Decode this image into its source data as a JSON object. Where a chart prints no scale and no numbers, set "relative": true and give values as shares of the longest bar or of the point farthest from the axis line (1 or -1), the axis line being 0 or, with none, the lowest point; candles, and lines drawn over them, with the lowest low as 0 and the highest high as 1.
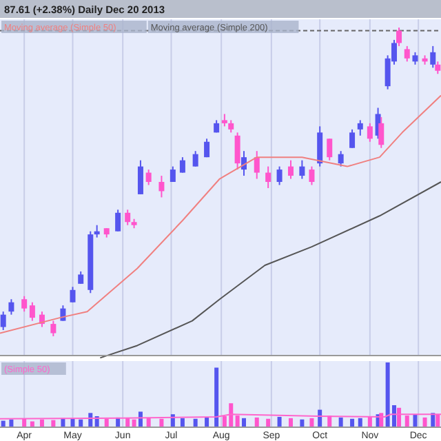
{
  "chart_data": [
    {
      "type": "candlestick",
      "title": "87.61 (+2.38%)   Daily  Dec 20 2013",
      "relative": true,
      "legend": "top left",
      "grid": "x",
      "tick_labels": false,
      "xlim": [
        "2013-03-17",
        "2013-12-15"
      ],
      "xticks": [
        {
          "value": "2013-04-01",
          "label": null
        },
        {
          "value": "2013-05-01",
          "label": null
        },
        {
          "value": "2013-06-01",
          "label": null
        },
        {
          "value": "2013-07-01",
          "label": null
        },
        {
          "value": "2013-08-01",
          "label": null
        },
        {
          "value": "2013-09-01",
          "label": null
        },
        {
          "value": "2013-10-01",
          "label": null
        },
        {
          "value": "2013-11-01",
          "label": null
        },
        {
          "value": "2013-12-01",
          "label": null
        }
      ],
      "x": [
        "2013-03-19",
        "2013-03-24",
        "2013-04-01",
        "2013-04-06",
        "2013-04-12",
        "2013-04-19",
        "2013-04-25",
        "2013-05-01",
        "2013-05-06",
        "2013-05-12",
        "2013-05-16",
        "2013-05-22",
        "2013-05-29",
        "2013-06-04",
        "2013-06-08",
        "2013-06-12",
        "2013-06-17",
        "2013-06-25",
        "2013-07-02",
        "2013-07-08",
        "2013-07-16",
        "2013-07-23",
        "2013-07-29",
        "2013-08-03",
        "2013-08-07",
        "2013-08-11",
        "2013-08-15",
        "2013-08-23",
        "2013-08-30",
        "2013-09-06",
        "2013-09-13",
        "2013-09-20",
        "2013-09-26",
        "2013-10-01",
        "2013-10-07",
        "2013-10-14",
        "2013-10-21",
        "2013-10-26",
        "2013-11-01",
        "2013-11-06",
        "2013-11-08",
        "2013-11-12",
        "2013-11-16",
        "2013-11-19",
        "2013-11-24",
        "2013-11-29",
        "2013-12-05",
        "2013-12-10",
        "2013-12-13"
      ],
      "ohlc": [
        [
          0.03,
          0.08,
          0.02,
          0.07
        ],
        [
          0.08,
          0.12,
          0.07,
          0.11
        ],
        [
          0.12,
          0.13,
          0.08,
          0.09
        ],
        [
          0.1,
          0.11,
          0.05,
          0.06
        ],
        [
          0.07,
          0.08,
          0.03,
          0.04
        ],
        [
          0.04,
          0.05,
          0,
          0.01
        ],
        [
          0.05,
          0.1,
          0.05,
          0.09
        ],
        [
          0.11,
          0.16,
          0.11,
          0.15
        ],
        [
          0.17,
          0.21,
          0.17,
          0.2
        ],
        [
          0.15,
          0.34,
          0.14,
          0.33
        ],
        [
          0.33,
          0.36,
          0.32,
          0.34
        ],
        [
          0.35,
          0.35,
          0.32,
          0.33
        ],
        [
          0.34,
          0.41,
          0.34,
          0.4
        ],
        [
          0.4,
          0.41,
          0.36,
          0.37
        ],
        [
          0.37,
          0.38,
          0.35,
          0.36
        ],
        [
          0.46,
          0.57,
          0.46,
          0.55
        ],
        [
          0.53,
          0.54,
          0.49,
          0.5
        ],
        [
          0.5,
          0.52,
          0.45,
          0.47
        ],
        [
          0.5,
          0.55,
          0.5,
          0.54
        ],
        [
          0.53,
          0.58,
          0.53,
          0.57
        ],
        [
          0.55,
          0.6,
          0.55,
          0.59
        ],
        [
          0.58,
          0.64,
          0.58,
          0.63
        ],
        [
          0.66,
          0.7,
          0.66,
          0.69
        ],
        [
          0.7,
          0.72,
          0.68,
          0.69
        ],
        [
          0.69,
          0.7,
          0.66,
          0.67
        ],
        [
          0.65,
          0.66,
          0.54,
          0.56
        ],
        [
          0.54,
          0.6,
          0.52,
          0.58
        ],
        [
          0.58,
          0.6,
          0.51,
          0.53
        ],
        [
          0.53,
          0.55,
          0.48,
          0.5
        ],
        [
          0.5,
          0.55,
          0.49,
          0.54
        ],
        [
          0.55,
          0.57,
          0.51,
          0.52
        ],
        [
          0.52,
          0.57,
          0.51,
          0.55
        ],
        [
          0.54,
          0.55,
          0.49,
          0.5
        ],
        [
          0.56,
          0.68,
          0.55,
          0.66
        ],
        [
          0.64,
          0.64,
          0.57,
          0.58
        ],
        [
          0.56,
          0.6,
          0.55,
          0.59
        ],
        [
          0.61,
          0.67,
          0.61,
          0.66
        ],
        [
          0.67,
          0.7,
          0.65,
          0.69
        ],
        [
          0.68,
          0.69,
          0.63,
          0.64
        ],
        [
          0.65,
          0.74,
          0.64,
          0.72
        ],
        [
          0.69,
          0.71,
          0.61,
          0.62
        ],
        [
          0.81,
          0.91,
          0.8,
          0.9
        ],
        [
          0.89,
          0.96,
          0.88,
          0.95
        ],
        [
          0.99,
          1,
          0.94,
          0.95
        ],
        [
          0.93,
          0.94,
          0.89,
          0.9
        ],
        [
          0.89,
          0.92,
          0.88,
          0.91
        ],
        [
          0.9,
          0.91,
          0.88,
          0.89
        ],
        [
          0.88,
          0.94,
          0.87,
          0.92
        ],
        [
          0.88,
          0.89,
          0.85,
          0.86
        ]
      ],
      "colors": [
        "#5555ee",
        "#5555ee",
        "#ff55cc",
        "#ff55cc",
        "#ff55cc",
        "#ff55cc",
        "#5555ee",
        "#5555ee",
        "#5555ee",
        "#5555ee",
        "#5555ee",
        "#ff55cc",
        "#5555ee",
        "#ff55cc",
        "#ff55cc",
        "#5555ee",
        "#ff55cc",
        "#ff55cc",
        "#5555ee",
        "#5555ee",
        "#5555ee",
        "#5555ee",
        "#5555ee",
        "#ff55cc",
        "#ff55cc",
        "#ff55cc",
        "#5555ee",
        "#ff55cc",
        "#ff55cc",
        "#5555ee",
        "#ff55cc",
        "#5555ee",
        "#ff55cc",
        "#5555ee",
        "#ff55cc",
        "#5555ee",
        "#5555ee",
        "#5555ee",
        "#ff55cc",
        "#5555ee",
        "#ff55cc",
        "#5555ee",
        "#5555ee",
        "#ff55cc",
        "#ff55cc",
        "#5555ee",
        "#ff55cc",
        "#5555ee",
        "#ff55cc"
      ],
      "series": [
        {
          "type": "line",
          "name": "Moving average (Simple 50)",
          "color": "#f08080",
          "x": [
            "2013-03-17",
            "2013-04-23",
            "2013-05-10",
            "2013-06-10",
            "2013-07-08",
            "2013-07-31",
            "2013-08-23",
            "2013-09-20",
            "2013-10-18",
            "2013-11-07",
            "2013-11-21",
            "2013-12-15"
          ],
          "values": [
            0.01,
            0.06,
            0.08,
            0.22,
            0.375,
            0.51,
            0.58,
            0.58,
            0.55,
            0.58,
            0.66,
            0.78
          ]
        },
        {
          "type": "line",
          "name": "Moving average (Simple 200)",
          "color": "#555555",
          "x": [
            "2013-05-18",
            "2013-06-10",
            "2013-07-14",
            "2013-07-31",
            "2013-08-28",
            "2013-09-26",
            "2013-11-07",
            "2013-12-15"
          ],
          "values": [
            -0.07,
            -0.03,
            0.05,
            0.12,
            0.23,
            0.29,
            0.39,
            0.5
          ]
        }
      ],
      "ref_lines": [
        {
          "axis": "y",
          "value": 0.99,
          "line_style": "dashed",
          "color": "#666666"
        }
      ]
    },
    {
      "type": "bar",
      "relative": true,
      "legend": "top left",
      "grid": "x",
      "tick_labels": "x",
      "xlim": [
        "2013-03-17",
        "2013-12-15"
      ],
      "xticks": [
        {
          "value": "2013-04-01",
          "label": "Apr"
        },
        {
          "value": "2013-05-01",
          "label": "May"
        },
        {
          "value": "2013-06-01",
          "label": "Jun"
        },
        {
          "value": "2013-07-01",
          "label": "Jul"
        },
        {
          "value": "2013-08-01",
          "label": "Aug"
        },
        {
          "value": "2013-09-01",
          "label": "Sep"
        },
        {
          "value": "2013-10-01",
          "label": "Oct"
        },
        {
          "value": "2013-11-01",
          "label": "Nov"
        },
        {
          "value": "2013-12-01",
          "label": "Dec"
        }
      ],
      "x": [
        "2013-03-19",
        "2013-03-24",
        "2013-04-01",
        "2013-04-06",
        "2013-04-12",
        "2013-04-19",
        "2013-04-25",
        "2013-05-01",
        "2013-05-06",
        "2013-05-12",
        "2013-05-16",
        "2013-05-22",
        "2013-05-29",
        "2013-06-04",
        "2013-06-08",
        "2013-06-12",
        "2013-06-17",
        "2013-06-25",
        "2013-07-02",
        "2013-07-08",
        "2013-07-16",
        "2013-07-23",
        "2013-07-29",
        "2013-08-03",
        "2013-08-07",
        "2013-08-11",
        "2013-08-15",
        "2013-08-23",
        "2013-08-30",
        "2013-09-06",
        "2013-09-13",
        "2013-09-20",
        "2013-09-26",
        "2013-10-01",
        "2013-10-07",
        "2013-10-14",
        "2013-10-21",
        "2013-10-26",
        "2013-11-01",
        "2013-11-06",
        "2013-11-08",
        "2013-11-12",
        "2013-11-16",
        "2013-11-19",
        "2013-11-24",
        "2013-11-29",
        "2013-12-05",
        "2013-12-10",
        "2013-12-13"
      ],
      "values": [
        0.1,
        0.12,
        0.13,
        0.09,
        0.12,
        0.11,
        0.14,
        0.13,
        0.12,
        0.22,
        0.17,
        0.13,
        0.15,
        0.14,
        0.12,
        0.24,
        0.15,
        0.13,
        0.2,
        0.14,
        0.13,
        0.15,
        0.92,
        0.17,
        0.37,
        0.18,
        0.14,
        0.15,
        0.13,
        0.16,
        0.14,
        0.12,
        0.14,
        0.27,
        0.18,
        0.15,
        0.13,
        0.14,
        0.16,
        0.2,
        0.22,
        1,
        0.34,
        0.3,
        0.18,
        0.2,
        0.15,
        0.22,
        0.2
      ],
      "colors": [
        "#5555ee",
        "#5555ee",
        "#ff55cc",
        "#ff55cc",
        "#ff55cc",
        "#ff55cc",
        "#5555ee",
        "#5555ee",
        "#5555ee",
        "#5555ee",
        "#5555ee",
        "#ff55cc",
        "#5555ee",
        "#ff55cc",
        "#ff55cc",
        "#5555ee",
        "#ff55cc",
        "#ff55cc",
        "#5555ee",
        "#5555ee",
        "#5555ee",
        "#5555ee",
        "#5555ee",
        "#ff55cc",
        "#ff55cc",
        "#ff55cc",
        "#5555ee",
        "#ff55cc",
        "#ff55cc",
        "#5555ee",
        "#ff55cc",
        "#5555ee",
        "#ff55cc",
        "#5555ee",
        "#ff55cc",
        "#5555ee",
        "#5555ee",
        "#5555ee",
        "#ff55cc",
        "#5555ee",
        "#ff55cc",
        "#5555ee",
        "#5555ee",
        "#ff55cc",
        "#ff55cc",
        "#5555ee",
        "#ff55cc",
        "#5555ee",
        "#ff55cc"
      ],
      "series": [
        {
          "type": "line",
          "name": "(Simple 50)",
          "color": "#ff66cc",
          "x": [
            "2013-03-17",
            "2013-06-01",
            "2013-07-29",
            "2013-08-07",
            "2013-09-30",
            "2013-11-10",
            "2013-11-14",
            "2013-12-15"
          ],
          "values": [
            0.13,
            0.14,
            0.16,
            0.2,
            0.17,
            0.16,
            0.2,
            0.2
          ]
        }
      ]
    }
  ]
}
